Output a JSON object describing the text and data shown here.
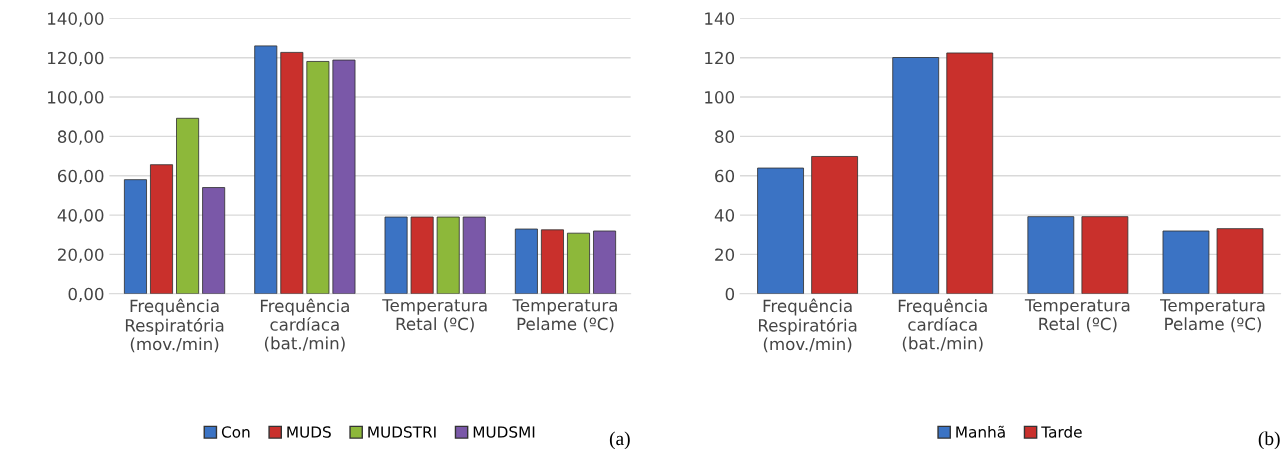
{
  "chart_data": [
    {
      "type": "bar",
      "categories": [
        "Frequência\nRespiratória\n(mov./min)",
        "Frequência\ncardíaca\n(bat./min)",
        "Temperatura\nRetal (ºC)",
        "Temperatura\nPelame (ºC)"
      ],
      "series": [
        {
          "name": "Con",
          "color": "#3b73c4",
          "values": [
            58,
            126,
            39,
            32.9
          ]
        },
        {
          "name": "MUDS",
          "color": "#c9302c",
          "values": [
            65.6,
            122.7,
            39,
            32.5
          ]
        },
        {
          "name": "MUDSTRI",
          "color": "#8db83a",
          "values": [
            89.2,
            118.1,
            39,
            30.8
          ]
        },
        {
          "name": "MUDSMI",
          "color": "#7a58a8",
          "values": [
            54,
            118.8,
            39,
            31.9
          ]
        }
      ],
      "ylim": [
        0,
        140
      ],
      "yticks": [
        {
          "value": 0,
          "label": "0,00"
        },
        {
          "value": 20,
          "label": "20,00"
        },
        {
          "value": 40,
          "label": "40,00"
        },
        {
          "value": 60,
          "label": "60,00"
        },
        {
          "value": 80,
          "label": "80,00"
        },
        {
          "value": 100,
          "label": "100,00"
        },
        {
          "value": 120,
          "label": "120,00"
        },
        {
          "value": 140,
          "label": "140,00"
        }
      ],
      "grid": "y",
      "legend": "bottom",
      "annotations": [
        "(a)"
      ]
    },
    {
      "type": "bar",
      "categories": [
        "Frequência\nRespiratória\n(mov./min)",
        "Frequência\ncardíaca\n(bat./min)",
        "Temperatura\nRetal (ºC)",
        "Temperatura\nPelame (ºC)"
      ],
      "series": [
        {
          "name": "Manhã",
          "color": "#3b73c4",
          "values": [
            63.9,
            120.1,
            39.2,
            31.9
          ]
        },
        {
          "name": "Tarde",
          "color": "#c9302c",
          "values": [
            69.8,
            122.4,
            39.2,
            33.1
          ]
        }
      ],
      "ylim": [
        0,
        140
      ],
      "yticks": [
        0,
        20,
        40,
        60,
        80,
        100,
        120,
        140
      ],
      "grid": "y",
      "legend": "bottom",
      "annotations": [
        "(b)"
      ]
    }
  ]
}
